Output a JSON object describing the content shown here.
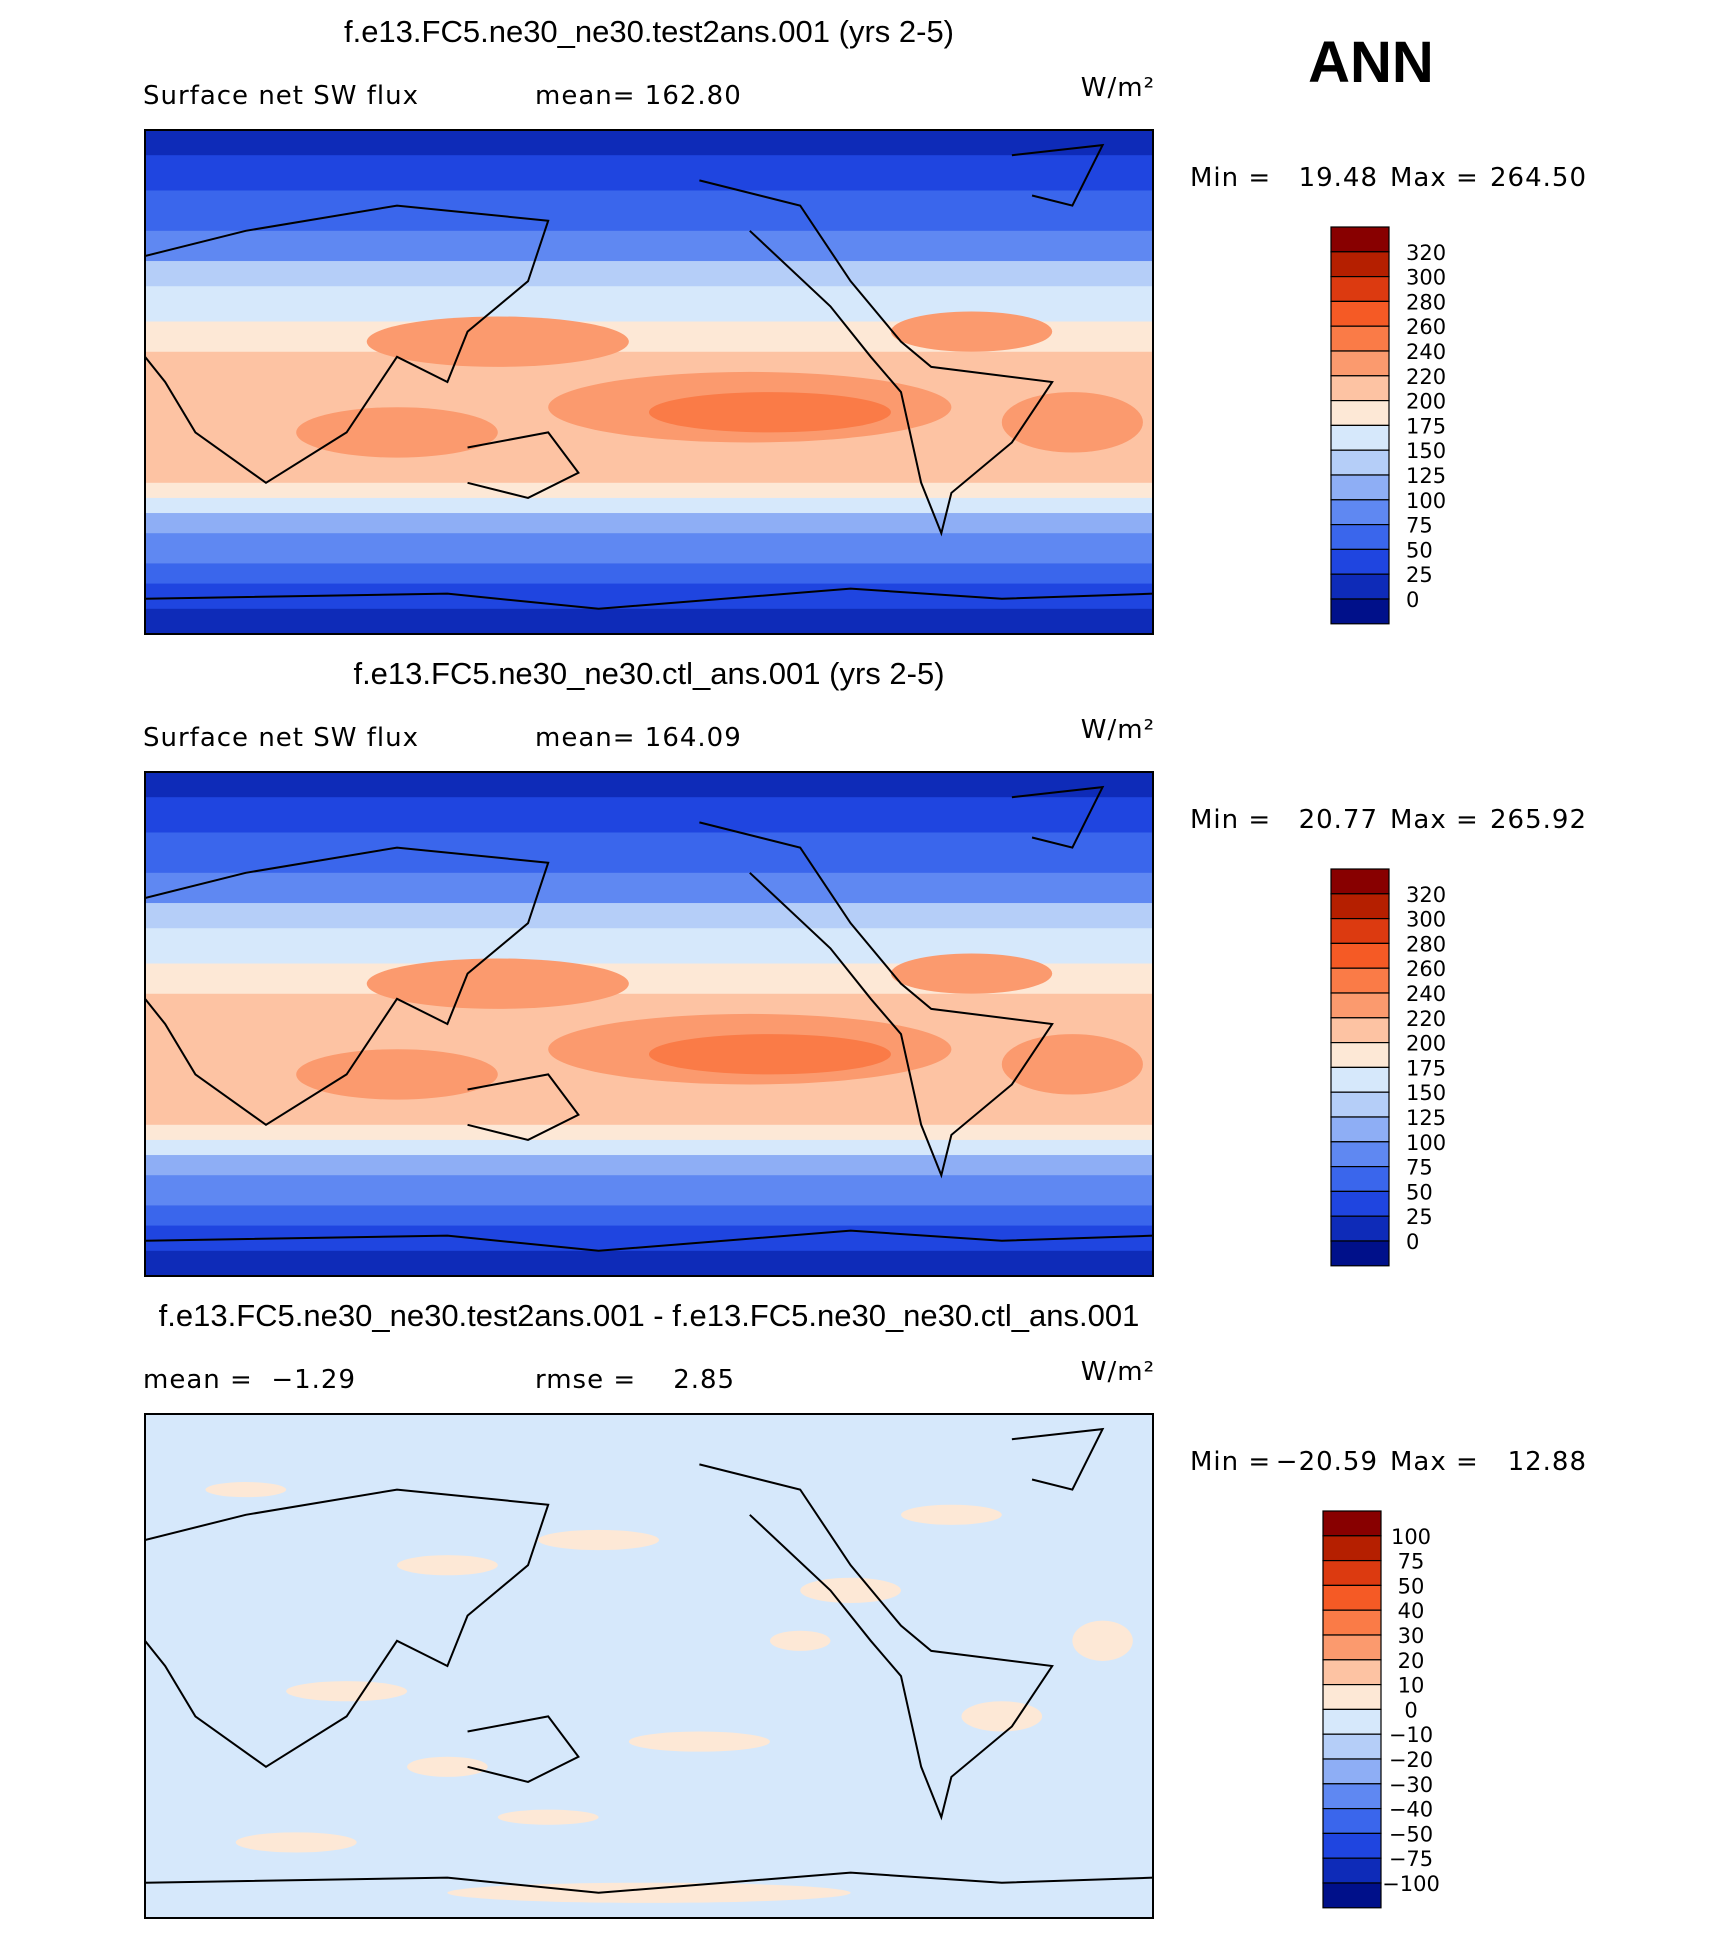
{
  "header": {
    "season": "ANN"
  },
  "panels": [
    {
      "title": "f.e13.FC5.ne30_ne30.test2ans.001 (yrs 2-5)",
      "left_label": "Surface net SW flux",
      "center_label": "mean= 162.80",
      "units": "W/m²",
      "min_label": "Min =",
      "min": "19.48",
      "max_label": "Max =",
      "max": "264.50",
      "colorbar": {
        "labels": [
          "320",
          "300",
          "280",
          "260",
          "240",
          "220",
          "200",
          "175",
          "150",
          "125",
          "100",
          "75",
          "50",
          "25",
          "0"
        ],
        "colors": [
          "#880000",
          "#b51f00",
          "#dc3a10",
          "#f55a25",
          "#fa7b47",
          "#fb9a6e",
          "#fdc3a3",
          "#fde8d6",
          "#d6e8fb",
          "#b5cef8",
          "#8eaef5",
          "#5f88f2",
          "#3a66ec",
          "#1f45e0",
          "#0e2bb8",
          "#00108a"
        ]
      }
    },
    {
      "title": "f.e13.FC5.ne30_ne30.ctl_ans.001 (yrs 2-5)",
      "left_label": "Surface net SW flux",
      "center_label": "mean= 164.09",
      "units": "W/m²",
      "min_label": "Min =",
      "min": "20.77",
      "max_label": "Max =",
      "max": "265.92",
      "colorbar": {
        "labels": [
          "320",
          "300",
          "280",
          "260",
          "240",
          "220",
          "200",
          "175",
          "150",
          "125",
          "100",
          "75",
          "50",
          "25",
          "0"
        ],
        "colors": [
          "#880000",
          "#b51f00",
          "#dc3a10",
          "#f55a25",
          "#fa7b47",
          "#fb9a6e",
          "#fdc3a3",
          "#fde8d6",
          "#d6e8fb",
          "#b5cef8",
          "#8eaef5",
          "#5f88f2",
          "#3a66ec",
          "#1f45e0",
          "#0e2bb8",
          "#00108a"
        ]
      }
    },
    {
      "title": "f.e13.FC5.ne30_ne30.test2ans.001 - f.e13.FC5.ne30_ne30.ctl_ans.001",
      "left_label": "mean =  −1.29",
      "center_label": "rmse =    2.85",
      "units": "W/m²",
      "min_label": "Min =",
      "min": "−20.59",
      "max_label": "Max =",
      "max": "12.88",
      "colorbar": {
        "labels": [
          "100",
          "75",
          "50",
          "40",
          "30",
          "20",
          "10",
          "0",
          "−10",
          "−20",
          "−30",
          "−40",
          "−50",
          "−75",
          "−100"
        ],
        "colors": [
          "#880000",
          "#b51f00",
          "#dc3a10",
          "#f55a25",
          "#fa7b47",
          "#fb9a6e",
          "#fdc3a3",
          "#fde8d6",
          "#d6e8fb",
          "#b5cef8",
          "#8eaef5",
          "#5f88f2",
          "#3a66ec",
          "#1f45e0",
          "#0e2bb8",
          "#00108a"
        ]
      }
    }
  ]
}
